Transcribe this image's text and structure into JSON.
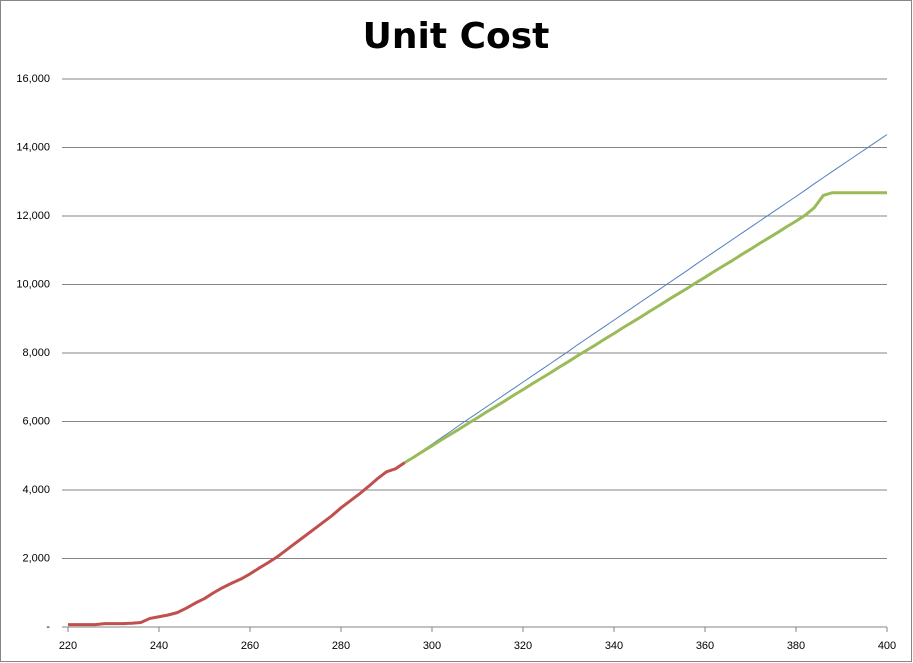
{
  "chart_data": {
    "type": "line",
    "title": "Unit Cost",
    "x": [
      220,
      222,
      224,
      226,
      228,
      230,
      232,
      234,
      236,
      238,
      240,
      242,
      244,
      246,
      248,
      250,
      252,
      254,
      256,
      258,
      260,
      262,
      264,
      266,
      268,
      270,
      272,
      274,
      276,
      278,
      280,
      282,
      284,
      286,
      288,
      290,
      292,
      294,
      296,
      298,
      300,
      302,
      304,
      306,
      308,
      310,
      312,
      314,
      316,
      318,
      320,
      322,
      324,
      326,
      328,
      330,
      332,
      334,
      336,
      338,
      340,
      342,
      344,
      346,
      348,
      350,
      352,
      354,
      356,
      358,
      360,
      362,
      364,
      366,
      368,
      370,
      372,
      374,
      376,
      378,
      380,
      382,
      384,
      386,
      388,
      390,
      392,
      394,
      396,
      398,
      400
    ],
    "series": [
      {
        "color": "#4f81bd",
        "values": [
          null,
          null,
          null,
          null,
          null,
          null,
          null,
          null,
          null,
          null,
          null,
          null,
          null,
          null,
          null,
          null,
          null,
          null,
          null,
          null,
          null,
          null,
          null,
          null,
          null,
          null,
          null,
          null,
          null,
          null,
          null,
          null,
          null,
          null,
          null,
          null,
          null,
          4800,
          4980,
          5160,
          5340,
          5520,
          5700,
          5890,
          6070,
          6250,
          6430,
          6610,
          6790,
          6970,
          7150,
          7330,
          7510,
          7690,
          7870,
          8050,
          8240,
          8420,
          8600,
          8780,
          8960,
          9140,
          9320,
          9500,
          9680,
          9860,
          10040,
          10220,
          10400,
          10590,
          10770,
          10950,
          11130,
          11310,
          11490,
          11670,
          11850,
          12030,
          12210,
          12390,
          12570,
          12750,
          12940,
          13120,
          13300,
          13480,
          13660,
          13840,
          14020,
          14200,
          14380
        ]
      },
      {
        "color": "#9bbb59",
        "values": [
          null,
          null,
          null,
          null,
          null,
          null,
          null,
          null,
          null,
          null,
          null,
          null,
          null,
          null,
          null,
          null,
          null,
          null,
          null,
          null,
          null,
          null,
          null,
          null,
          null,
          null,
          null,
          null,
          null,
          null,
          null,
          null,
          null,
          null,
          null,
          null,
          null,
          4800,
          4960,
          5130,
          5290,
          5460,
          5620,
          5780,
          5950,
          6110,
          6280,
          6440,
          6600,
          6770,
          6930,
          7100,
          7260,
          7420,
          7590,
          7750,
          7920,
          8080,
          8240,
          8410,
          8570,
          8740,
          8900,
          9060,
          9230,
          9390,
          9560,
          9720,
          9880,
          10050,
          10210,
          10380,
          10540,
          10700,
          10870,
          11030,
          11200,
          11360,
          11520,
          11690,
          11850,
          12020,
          12240,
          12600,
          12680,
          12680,
          12680,
          12680,
          12680,
          12680,
          12680
        ]
      },
      {
        "color": "#c0504d",
        "values": [
          70,
          70,
          70,
          70,
          100,
          100,
          100,
          110,
          130,
          250,
          300,
          350,
          420,
          550,
          700,
          830,
          1000,
          1150,
          1280,
          1400,
          1550,
          1720,
          1880,
          2050,
          2250,
          2450,
          2650,
          2850,
          3050,
          3250,
          3480,
          3680,
          3880,
          4100,
          4330,
          4530,
          4620,
          4800,
          null,
          null,
          null,
          null,
          null,
          null,
          null,
          null,
          null,
          null,
          null,
          null,
          null,
          null,
          null,
          null,
          null,
          null,
          null,
          null,
          null,
          null,
          null,
          null,
          null,
          null,
          null,
          null,
          null,
          null,
          null,
          null,
          null,
          null,
          null,
          null,
          null,
          null,
          null,
          null,
          null,
          null,
          null,
          null,
          null,
          null,
          null,
          null,
          null,
          null,
          null,
          null,
          null
        ]
      }
    ],
    "xlim": [
      220,
      400
    ],
    "xticks": [
      220,
      240,
      260,
      280,
      300,
      320,
      340,
      360,
      380,
      400
    ],
    "ylim": [
      0,
      16000
    ],
    "yticks": [
      {
        "value": 0,
        "label": "-"
      },
      {
        "value": 2000,
        "label": "2,000"
      },
      {
        "value": 4000,
        "label": "4,000"
      },
      {
        "value": 6000,
        "label": "6,000"
      },
      {
        "value": 8000,
        "label": "8,000"
      },
      {
        "value": 10000,
        "label": "10,000"
      },
      {
        "value": 12000,
        "label": "12,000"
      },
      {
        "value": 14000,
        "label": "14,000"
      },
      {
        "value": 16000,
        "label": "16,000"
      }
    ],
    "grid": true
  }
}
